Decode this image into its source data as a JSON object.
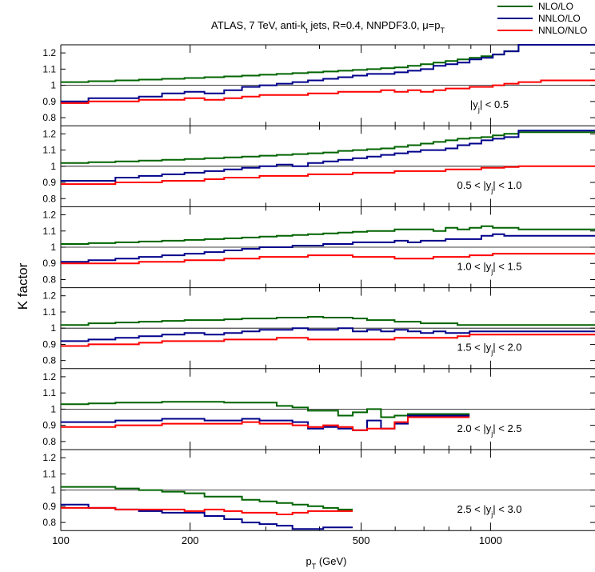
{
  "chart_data": {
    "type": "line",
    "title": "ATLAS, 7 TeV, anti-k",
    "title_sub": "t",
    "title_rest": " jets, R=0.4, NNPDF3.0, μ=p",
    "title_sub2": "T",
    "ylabel": "K factor",
    "xlabel_main": "p",
    "xlabel_sub": "T",
    "xlabel_rest": " (GeV)",
    "x_scale": "log",
    "xlim": [
      100,
      1750
    ],
    "x_ticks": [
      100,
      200,
      500,
      1000
    ],
    "x_tick_labels": [
      "100",
      "200",
      "500",
      "1000"
    ],
    "ylim": [
      0.75,
      1.25
    ],
    "y_ticks": [
      0.8,
      0.9,
      1,
      1.1,
      1.2
    ],
    "y_tick_labels": [
      "0.8",
      "0.9",
      "1",
      "1.1",
      "1.2"
    ],
    "grid": false,
    "legend": "top-right",
    "colors": {
      "NLO/LO": "#006400",
      "NNLO/LO": "#00008b",
      "NNLO/NLO": "#ff0000"
    },
    "series_names": [
      "NLO/LO",
      "NNLO/LO",
      "NNLO/NLO"
    ],
    "bin_edges": [
      100,
      116,
      134,
      152,
      172,
      194,
      216,
      240,
      264,
      290,
      318,
      346,
      376,
      408,
      442,
      478,
      516,
      556,
      598,
      642,
      688,
      736,
      786,
      838,
      894,
      952,
      1012,
      1076,
      1162,
      1310,
      1992
    ],
    "panels": [
      {
        "label_pre": "|y",
        "label_sub": "j",
        "label_post": "| < 0.5",
        "series": [
          {
            "name": "NLO/LO",
            "values": [
              1.02,
              1.025,
              1.03,
              1.035,
              1.04,
              1.045,
              1.05,
              1.055,
              1.06,
              1.065,
              1.07,
              1.075,
              1.08,
              1.085,
              1.09,
              1.095,
              1.1,
              1.105,
              1.11,
              1.12,
              1.13,
              1.14,
              1.15,
              1.16,
              1.17,
              1.18,
              1.19,
              1.21,
              1.25,
              1.25
            ]
          },
          {
            "name": "NNLO/LO",
            "values": [
              0.9,
              0.92,
              0.92,
              0.93,
              0.95,
              0.96,
              0.95,
              0.97,
              0.99,
              1.0,
              1.01,
              1.02,
              1.03,
              1.04,
              1.05,
              1.06,
              1.07,
              1.07,
              1.08,
              1.09,
              1.1,
              1.12,
              1.13,
              1.14,
              1.16,
              1.17,
              1.19,
              1.21,
              1.25,
              1.25
            ]
          },
          {
            "name": "NNLO/NLO",
            "values": [
              0.89,
              0.9,
              0.9,
              0.91,
              0.91,
              0.92,
              0.91,
              0.92,
              0.93,
              0.94,
              0.94,
              0.94,
              0.95,
              0.95,
              0.96,
              0.96,
              0.96,
              0.97,
              0.96,
              0.97,
              0.96,
              0.97,
              0.98,
              0.98,
              0.99,
              0.99,
              1.0,
              1.01,
              1.02,
              1.03
            ]
          }
        ]
      },
      {
        "label_pre": "0.5 < |y",
        "label_sub": "j",
        "label_post": "| < 1.0",
        "series": [
          {
            "name": "NLO/LO",
            "values": [
              1.02,
              1.025,
              1.03,
              1.035,
              1.04,
              1.045,
              1.05,
              1.055,
              1.06,
              1.065,
              1.07,
              1.075,
              1.08,
              1.085,
              1.095,
              1.1,
              1.105,
              1.11,
              1.12,
              1.13,
              1.14,
              1.15,
              1.16,
              1.17,
              1.175,
              1.18,
              1.19,
              1.2,
              1.21,
              1.21
            ]
          },
          {
            "name": "NNLO/LO",
            "values": [
              0.91,
              0.91,
              0.93,
              0.94,
              0.95,
              0.96,
              0.97,
              0.98,
              0.99,
              1.0,
              1.01,
              1.0,
              1.02,
              1.03,
              1.04,
              1.05,
              1.06,
              1.07,
              1.08,
              1.09,
              1.1,
              1.1,
              1.11,
              1.13,
              1.14,
              1.16,
              1.17,
              1.18,
              1.22,
              1.22
            ]
          },
          {
            "name": "NNLO/NLO",
            "values": [
              0.89,
              0.89,
              0.9,
              0.9,
              0.91,
              0.91,
              0.92,
              0.93,
              0.93,
              0.94,
              0.94,
              0.94,
              0.95,
              0.95,
              0.95,
              0.96,
              0.96,
              0.96,
              0.97,
              0.97,
              0.97,
              0.97,
              0.98,
              0.98,
              0.98,
              0.99,
              0.99,
              0.995,
              1.0,
              1.0
            ]
          }
        ]
      },
      {
        "label_pre": "1.0 < |y",
        "label_sub": "j",
        "label_post": "| < 1.5",
        "series": [
          {
            "name": "NLO/LO",
            "values": [
              1.02,
              1.025,
              1.03,
              1.035,
              1.04,
              1.045,
              1.05,
              1.055,
              1.06,
              1.065,
              1.07,
              1.075,
              1.08,
              1.085,
              1.09,
              1.095,
              1.1,
              1.1,
              1.11,
              1.11,
              1.11,
              1.1,
              1.12,
              1.11,
              1.12,
              1.13,
              1.12,
              1.12,
              1.11,
              1.11
            ]
          },
          {
            "name": "NNLO/LO",
            "values": [
              0.91,
              0.92,
              0.93,
              0.94,
              0.95,
              0.96,
              0.97,
              0.98,
              0.99,
              1.0,
              1.0,
              1.01,
              1.01,
              1.02,
              1.02,
              1.03,
              1.03,
              1.03,
              1.04,
              1.03,
              1.04,
              1.04,
              1.05,
              1.05,
              1.05,
              1.07,
              1.08,
              1.07,
              1.07,
              1.07
            ]
          },
          {
            "name": "NNLO/NLO",
            "values": [
              0.9,
              0.9,
              0.9,
              0.91,
              0.91,
              0.92,
              0.92,
              0.93,
              0.93,
              0.94,
              0.94,
              0.94,
              0.95,
              0.95,
              0.95,
              0.94,
              0.94,
              0.94,
              0.93,
              0.93,
              0.93,
              0.94,
              0.94,
              0.94,
              0.95,
              0.95,
              0.96,
              0.96,
              0.96,
              0.96
            ]
          }
        ]
      },
      {
        "label_pre": "1.5 < |y",
        "label_sub": "j",
        "label_post": "| < 2.0",
        "series": [
          {
            "name": "NLO/LO",
            "values": [
              1.02,
              1.03,
              1.035,
              1.04,
              1.045,
              1.05,
              1.05,
              1.055,
              1.06,
              1.06,
              1.065,
              1.065,
              1.07,
              1.065,
              1.065,
              1.06,
              1.05,
              1.05,
              1.04,
              1.04,
              1.03,
              1.03,
              1.03,
              1.02,
              1.02,
              1.02,
              1.02,
              1.02,
              1.02,
              1.02
            ]
          },
          {
            "name": "NNLO/LO",
            "values": [
              0.92,
              0.93,
              0.94,
              0.95,
              0.96,
              0.97,
              0.96,
              0.97,
              0.98,
              0.99,
              0.99,
              1.0,
              0.99,
              0.99,
              1.0,
              0.98,
              0.99,
              0.98,
              0.99,
              0.98,
              0.97,
              0.98,
              0.97,
              0.97,
              0.98,
              0.98,
              0.98,
              0.98,
              0.98,
              0.98
            ]
          },
          {
            "name": "NNLO/NLO",
            "values": [
              0.89,
              0.9,
              0.9,
              0.91,
              0.92,
              0.92,
              0.92,
              0.93,
              0.93,
              0.93,
              0.94,
              0.94,
              0.93,
              0.93,
              0.93,
              0.93,
              0.93,
              0.93,
              0.94,
              0.94,
              0.94,
              0.94,
              0.94,
              0.95,
              0.96,
              0.96,
              0.96,
              0.96,
              0.96,
              0.96
            ]
          }
        ]
      },
      {
        "label_pre": "2.0 < |y",
        "label_sub": "j",
        "label_post": "| < 2.5",
        "series": [
          {
            "name": "NLO/LO",
            "values": [
              1.03,
              1.035,
              1.04,
              1.04,
              1.045,
              1.045,
              1.045,
              1.04,
              1.04,
              1.04,
              1.02,
              1.01,
              0.99,
              0.99,
              0.96,
              0.98,
              1.0,
              0.95,
              0.96,
              0.97,
              0.97,
              0.97,
              0.97,
              0.97
            ]
          },
          {
            "name": "NNLO/LO",
            "values": [
              0.92,
              0.92,
              0.93,
              0.93,
              0.94,
              0.94,
              0.93,
              0.93,
              0.94,
              0.93,
              0.93,
              0.92,
              0.88,
              0.89,
              0.88,
              0.87,
              0.93,
              0.88,
              0.91,
              0.96,
              0.96,
              0.96,
              0.96,
              0.96
            ]
          },
          {
            "name": "NNLO/NLO",
            "values": [
              0.89,
              0.89,
              0.9,
              0.9,
              0.91,
              0.91,
              0.91,
              0.91,
              0.92,
              0.91,
              0.91,
              0.9,
              0.89,
              0.9,
              0.89,
              0.87,
              0.88,
              0.88,
              0.92,
              0.95,
              0.95,
              0.95,
              0.95,
              0.95
            ]
          }
        ]
      },
      {
        "label_pre": "2.5 < |y",
        "label_sub": "j",
        "label_post": "| < 3.0",
        "series": [
          {
            "name": "NLO/LO",
            "values": [
              1.02,
              1.02,
              1.01,
              1.0,
              0.99,
              0.98,
              0.96,
              0.96,
              0.94,
              0.93,
              0.92,
              0.91,
              0.9,
              0.89,
              0.88
            ]
          },
          {
            "name": "NNLO/LO",
            "values": [
              0.91,
              0.89,
              0.88,
              0.87,
              0.86,
              0.86,
              0.84,
              0.82,
              0.8,
              0.79,
              0.78,
              0.76,
              0.76,
              0.77,
              0.77
            ]
          },
          {
            "name": "NNLO/NLO",
            "values": [
              0.89,
              0.89,
              0.88,
              0.88,
              0.88,
              0.87,
              0.88,
              0.87,
              0.86,
              0.86,
              0.85,
              0.86,
              0.87,
              0.87,
              0.87
            ]
          }
        ]
      }
    ]
  }
}
